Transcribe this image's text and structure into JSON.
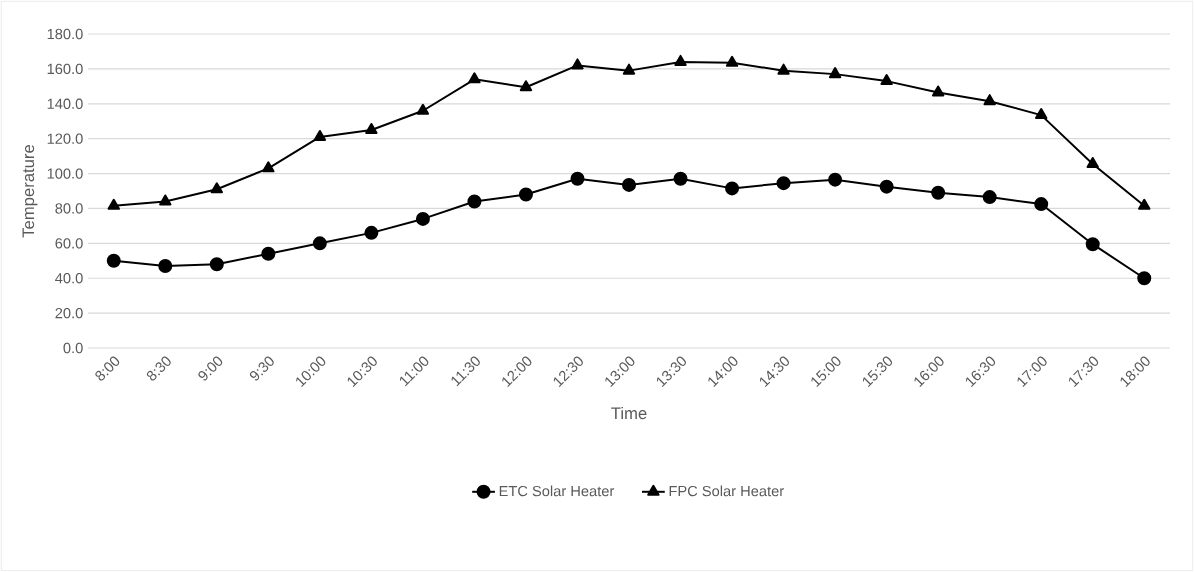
{
  "chart_data": {
    "type": "line",
    "xlabel": "Time",
    "ylabel": "Temperature",
    "categories": [
      "8:00",
      "8:30",
      "9:00",
      "9:30",
      "10:00",
      "10:30",
      "11:00",
      "11:30",
      "12:00",
      "12:30",
      "13:00",
      "13:30",
      "14:00",
      "14:30",
      "15:00",
      "15:30",
      "16:00",
      "16:30",
      "17:00",
      "17:30",
      "18:00"
    ],
    "series": [
      {
        "name": "ETC Solar Heater",
        "color": "#000000",
        "marker": "circle",
        "values": [
          50,
          47,
          48,
          54,
          60,
          66,
          74,
          84,
          88,
          97,
          93.5,
          97,
          91.5,
          94.5,
          96.5,
          92.5,
          89,
          86.5,
          82.5,
          59.5,
          40
        ]
      },
      {
        "name": "FPC Solar Heater",
        "color": "#000000",
        "marker": "triangle",
        "values": [
          81.5,
          84,
          91,
          103,
          121,
          125,
          136,
          154,
          149.5,
          162,
          159,
          164,
          163.5,
          159,
          157,
          153,
          146.5,
          141.5,
          133.5,
          105.5,
          81.5
        ]
      }
    ],
    "ylim": [
      0,
      180
    ],
    "yticks": [
      {
        "value": 0,
        "label": "0.0"
      },
      {
        "value": 20,
        "label": "20.0"
      },
      {
        "value": 40,
        "label": "40.0"
      },
      {
        "value": 60,
        "label": "60.0"
      },
      {
        "value": 80,
        "label": "80.0"
      },
      {
        "value": 100,
        "label": "100.0"
      },
      {
        "value": 120,
        "label": "120.0"
      },
      {
        "value": 140,
        "label": "140.0"
      },
      {
        "value": 160,
        "label": "160.0"
      },
      {
        "value": 180,
        "label": "180.0"
      }
    ],
    "grid": "y",
    "legend": "bottom",
    "line_style": "solid"
  }
}
